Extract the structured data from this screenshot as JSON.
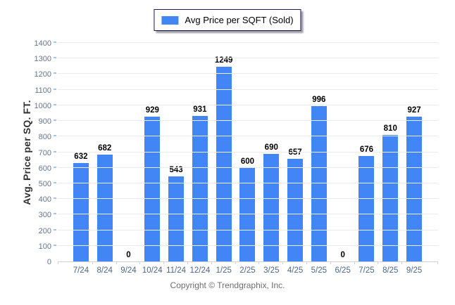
{
  "legend": {
    "label": "Avg Price per SQFT (Sold)"
  },
  "footer": {
    "copyright": "Copyright © Trendgraphix, Inc."
  },
  "colors": {
    "bar": "#4285f4",
    "grid": "#ececec",
    "axis_line": "#d2d2d2",
    "boundary_tick": "#cfcfcf",
    "y_axis_tick": "#9ec7f3",
    "x_label": "#4d6784",
    "y_label": "#66758a",
    "value_label": "#000000",
    "legend_border": "#1b1b4f"
  },
  "chart_data": {
    "type": "bar",
    "title": "",
    "series_name": "Avg Price per SQFT (Sold)",
    "categories": [
      "7/24",
      "8/24",
      "9/24",
      "10/24",
      "11/24",
      "12/24",
      "1/25",
      "2/25",
      "3/25",
      "4/25",
      "5/25",
      "6/25",
      "7/25",
      "8/25",
      "9/25"
    ],
    "values": [
      632,
      682,
      0,
      929,
      543,
      931,
      1249,
      600,
      690,
      657,
      996,
      0,
      676,
      810,
      927
    ],
    "xlabel": "",
    "ylabel": "Avg. Price per SQ. FT.",
    "ylim": [
      0,
      1400
    ],
    "ytick_step": 100,
    "grid": true,
    "legend_position": "top-center"
  }
}
